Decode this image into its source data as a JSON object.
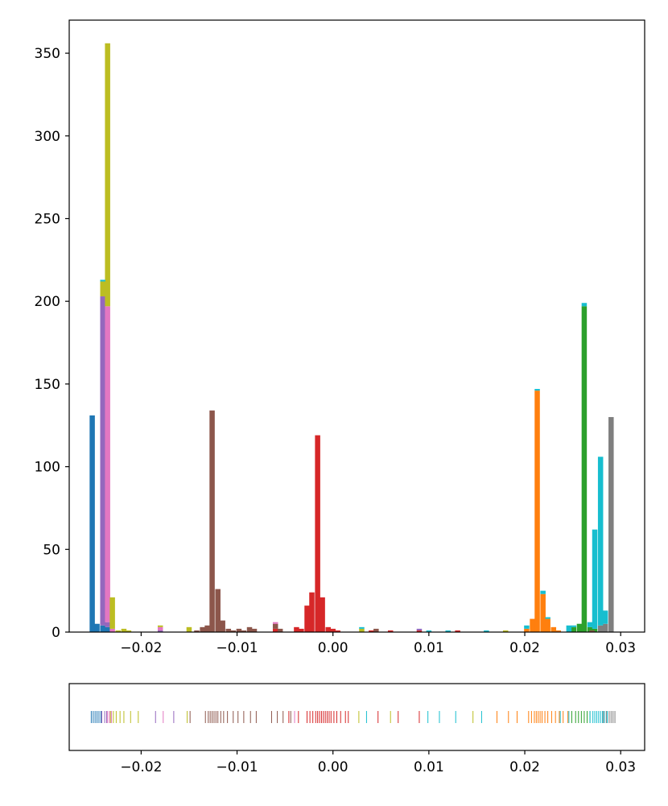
{
  "chart_data": [
    {
      "type": "bar",
      "subtype": "stacked-histogram",
      "title": "",
      "xlabel": "",
      "ylabel": "",
      "xlim": [
        -0.0275,
        0.0325
      ],
      "ylim": [
        0,
        370
      ],
      "xticks": [
        {
          "value": -0.02,
          "label": "−0.02"
        },
        {
          "value": -0.01,
          "label": "−0.01"
        },
        {
          "value": 0.0,
          "label": "0.00"
        },
        {
          "value": 0.01,
          "label": "0.01"
        },
        {
          "value": 0.02,
          "label": "0.02"
        },
        {
          "value": 0.03,
          "label": "0.03"
        }
      ],
      "yticks": [
        {
          "value": 0,
          "label": "0"
        },
        {
          "value": 50,
          "label": "50"
        },
        {
          "value": 100,
          "label": "100"
        },
        {
          "value": 150,
          "label": "150"
        },
        {
          "value": 200,
          "label": "200"
        },
        {
          "value": 250,
          "label": "250"
        },
        {
          "value": 300,
          "label": "300"
        },
        {
          "value": 350,
          "label": "350"
        }
      ],
      "grid": false,
      "bin_width": 0.000546,
      "series": [
        {
          "color": "#1f77b4",
          "bins": [
            [
              -0.0251,
              131
            ],
            [
              -0.0246,
              5
            ],
            [
              -0.024,
              4
            ],
            [
              -0.0235,
              3
            ]
          ]
        },
        {
          "color": "#ff7f0e",
          "bins": [
            [
              0.0202,
              2
            ],
            [
              0.0208,
              8
            ],
            [
              0.0213,
              146
            ],
            [
              0.0219,
              23
            ],
            [
              0.0224,
              8
            ],
            [
              0.023,
              3
            ],
            [
              0.0235,
              1
            ]
          ]
        },
        {
          "color": "#2ca02c",
          "bins": [
            [
              0.0251,
              3
            ],
            [
              0.0257,
              5
            ],
            [
              0.0262,
              197
            ],
            [
              0.0268,
              3
            ],
            [
              0.0273,
              2
            ]
          ]
        },
        {
          "color": "#d62728",
          "bins": [
            [
              -0.0038,
              3
            ],
            [
              -0.0033,
              2
            ],
            [
              -0.0027,
              16
            ],
            [
              -0.0022,
              24
            ],
            [
              -0.0016,
              119
            ],
            [
              -0.0011,
              21
            ],
            [
              -0.0005,
              3
            ],
            [
              0.0,
              2
            ],
            [
              0.0005,
              1
            ],
            [
              -0.006,
              2
            ],
            [
              0.004,
              1
            ],
            [
              0.006,
              1
            ],
            [
              0.013,
              1
            ],
            [
              0.009,
              1
            ]
          ]
        },
        {
          "color": "#9467bd",
          "bins": [
            [
              -0.024,
              199
            ],
            [
              -0.0235,
              3
            ],
            [
              -0.018,
              1
            ],
            [
              0.009,
              1
            ]
          ]
        },
        {
          "color": "#8c564b",
          "bins": [
            [
              -0.0142,
              1
            ],
            [
              -0.0136,
              3
            ],
            [
              -0.0131,
              4
            ],
            [
              -0.0126,
              134
            ],
            [
              -0.012,
              26
            ],
            [
              -0.0115,
              7
            ],
            [
              -0.0109,
              2
            ],
            [
              -0.0104,
              1
            ],
            [
              -0.0098,
              2
            ],
            [
              -0.0093,
              1
            ],
            [
              -0.0087,
              3
            ],
            [
              -0.0082,
              2
            ],
            [
              -0.006,
              3
            ],
            [
              -0.0055,
              2
            ],
            [
              0.0045,
              2
            ],
            [
              0.027,
              1
            ]
          ]
        },
        {
          "color": "#e377c2",
          "bins": [
            [
              -0.0235,
              191
            ],
            [
              -0.023,
              2
            ],
            [
              -0.018,
              2
            ],
            [
              -0.006,
              1
            ]
          ]
        },
        {
          "color": "#7f7f7f",
          "bins": [
            [
              0.0279,
              4
            ],
            [
              0.0284,
              5
            ],
            [
              0.029,
              130
            ]
          ]
        },
        {
          "color": "#bcbd22",
          "bins": [
            [
              -0.024,
              9
            ],
            [
              -0.0235,
              159
            ],
            [
              -0.023,
              19
            ],
            [
              -0.0224,
              1
            ],
            [
              -0.0218,
              2
            ],
            [
              -0.0213,
              1
            ],
            [
              -0.018,
              1
            ],
            [
              -0.015,
              3
            ],
            [
              0.003,
              2
            ],
            [
              0.018,
              1
            ]
          ]
        },
        {
          "color": "#17becf",
          "bins": [
            [
              0.0202,
              2
            ],
            [
              0.0213,
              1
            ],
            [
              0.0219,
              2
            ],
            [
              0.0224,
              1
            ],
            [
              0.0246,
              4
            ],
            [
              0.0251,
              1
            ],
            [
              0.0262,
              2
            ],
            [
              0.0268,
              3
            ],
            [
              0.0273,
              60
            ],
            [
              0.0279,
              102
            ],
            [
              0.0284,
              8
            ],
            [
              0.012,
              1
            ],
            [
              0.016,
              1
            ],
            [
              0.01,
              1
            ],
            [
              0.003,
              1
            ],
            [
              -0.024,
              1
            ]
          ]
        }
      ]
    },
    {
      "type": "scatter",
      "subtype": "rug",
      "xlim": [
        -0.0275,
        0.0325
      ],
      "xticks": [
        {
          "value": -0.02,
          "label": "−0.02"
        },
        {
          "value": -0.01,
          "label": "−0.01"
        },
        {
          "value": 0.0,
          "label": "0.00"
        },
        {
          "value": 0.01,
          "label": "0.01"
        },
        {
          "value": 0.02,
          "label": "0.02"
        },
        {
          "value": 0.03,
          "label": "0.03"
        }
      ],
      "series": [
        {
          "color": "#1f77b4",
          "x": [
            -0.0252,
            -0.025,
            -0.0248,
            -0.0246,
            -0.0244,
            -0.0242
          ]
        },
        {
          "color": "#ff7f0e",
          "x": [
            0.0204,
            0.0207,
            0.021,
            0.0212,
            0.0214,
            0.0216,
            0.0218,
            0.0221,
            0.0224,
            0.0228,
            0.0232,
            0.0236,
            0.024,
            0.0245,
            0.0171,
            0.0183,
            0.0192
          ]
        },
        {
          "color": "#2ca02c",
          "x": [
            0.0249,
            0.0253,
            0.0256,
            0.0259,
            0.0262,
            0.0265,
            0.0268
          ]
        },
        {
          "color": "#d62728",
          "x": [
            -0.0027,
            -0.0024,
            -0.0021,
            -0.0018,
            -0.0016,
            -0.0014,
            -0.0012,
            -0.001,
            -0.0008,
            -0.0006,
            -0.0004,
            -0.0002,
            0.0001,
            0.0004,
            0.0008,
            0.0013,
            0.0016,
            -0.0036,
            -0.0046,
            0.0047,
            0.0068,
            0.009
          ]
        },
        {
          "color": "#9467bd",
          "x": [
            -0.0241,
            -0.0238,
            -0.0236,
            -0.0185,
            -0.0166
          ]
        },
        {
          "color": "#8c564b",
          "x": [
            -0.0133,
            -0.013,
            -0.0128,
            -0.0126,
            -0.0124,
            -0.0122,
            -0.012,
            -0.0117,
            -0.0114,
            -0.011,
            -0.0104,
            -0.0099,
            -0.0093,
            -0.0086,
            -0.008,
            -0.0064,
            -0.0058,
            -0.0052,
            -0.0044,
            -0.0149
          ]
        },
        {
          "color": "#e377c2",
          "x": [
            -0.0235,
            -0.0233,
            -0.0231,
            -0.0177,
            -0.004
          ]
        },
        {
          "color": "#7f7f7f",
          "x": [
            0.0282,
            0.0285,
            0.0288,
            0.029,
            0.0292,
            0.0294
          ]
        },
        {
          "color": "#bcbd22",
          "x": [
            -0.0232,
            -0.0229,
            -0.0226,
            -0.0222,
            -0.0218,
            -0.0211,
            -0.0203,
            -0.0152,
            0.0027,
            0.006,
            0.0146
          ]
        },
        {
          "color": "#17becf",
          "x": [
            0.0268,
            0.0271,
            0.0273,
            0.0275,
            0.0277,
            0.0279,
            0.0281,
            0.0283,
            0.0286,
            0.0246,
            0.0237,
            0.0111,
            0.0099,
            0.0155,
            0.0128,
            0.0035
          ]
        }
      ]
    }
  ]
}
